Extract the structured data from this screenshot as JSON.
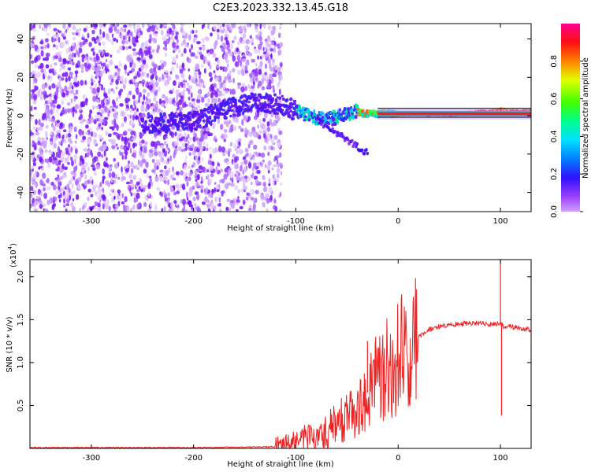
{
  "title": "C2E3.2023.332.13.45.G18",
  "chart_data": [
    {
      "type": "heatmap",
      "name": "spectrogram",
      "xlabel": "Height of straight line (km)",
      "ylabel": "Frequency (Hz)",
      "xlim": [
        -360,
        130
      ],
      "ylim": [
        -50,
        48
      ],
      "xticks": [
        -300,
        -200,
        -100,
        0,
        100
      ],
      "yticks": [
        -40,
        -20,
        0,
        20,
        40
      ],
      "tick_labels_x": [
        "-300",
        "-200",
        "-100",
        "0",
        "100"
      ],
      "tick_labels_y": [
        "-40",
        "-20",
        "0",
        "20",
        "40"
      ],
      "colorbar": {
        "label": "Normalized spectral amplitude",
        "range": [
          0,
          1
        ],
        "ticks": [
          0.0,
          0.2,
          0.4,
          0.6,
          0.8
        ],
        "tick_labels": [
          "0.0",
          "0.2",
          "0.4",
          "0.6",
          "0.8"
        ],
        "colors": [
          "#d0a0ff",
          "#8000ff",
          "#2020ff",
          "#00c0ff",
          "#00ff80",
          "#40ff00",
          "#ffff00",
          "#ff8000",
          "#ff0000",
          "#ff0080"
        ]
      },
      "signal_track": {
        "x": [
          -240,
          -200,
          -170,
          -150,
          -130,
          -110,
          -90,
          -70,
          -55,
          -40,
          -30,
          -20,
          0,
          30,
          60,
          90,
          100,
          110,
          130
        ],
        "frequency": [
          -4,
          -3,
          3,
          6,
          7,
          5,
          0,
          -2,
          0,
          2,
          1,
          1,
          1,
          1,
          1,
          2,
          3,
          2,
          2
        ]
      },
      "noise_region_x": [
        -360,
        -120
      ]
    },
    {
      "type": "line",
      "name": "snr",
      "xlabel": "Height of straight line (km)",
      "ylabel": "SNR (10 * v/v)",
      "exponent_label": "(x10",
      "exponent_power": "4",
      "exponent_close": ")",
      "xlim": [
        -360,
        130
      ],
      "ylim": [
        0,
        2.2
      ],
      "xticks": [
        -300,
        -200,
        -100,
        0,
        100
      ],
      "yticks": [
        0.5,
        1.0,
        1.5,
        2.0
      ],
      "tick_labels_x": [
        "-300",
        "-200",
        "-100",
        "0",
        "100"
      ],
      "tick_labels_y": [
        "0.5",
        "1.0",
        "1.5",
        "2.0"
      ],
      "series_color": "#ee2222",
      "series": [
        {
          "name": "SNR",
          "x": [
            -360,
            -300,
            -200,
            -150,
            -120,
            -110,
            -100,
            -90,
            -80,
            -70,
            -60,
            -50,
            -40,
            -30,
            -20,
            -10,
            0,
            10,
            20,
            30,
            40,
            50,
            60,
            70,
            80,
            90,
            95,
            100,
            105,
            110,
            120,
            130
          ],
          "y": [
            0.01,
            0.01,
            0.01,
            0.015,
            0.02,
            0.04,
            0.08,
            0.15,
            0.1,
            0.2,
            0.3,
            0.4,
            0.5,
            0.65,
            0.8,
            0.95,
            1.05,
            1.2,
            1.3,
            1.38,
            1.42,
            1.44,
            1.45,
            1.46,
            1.46,
            1.45,
            1.45,
            1.45,
            1.41,
            1.42,
            1.4,
            1.38
          ]
        }
      ],
      "spikes": [
        {
          "x": 100,
          "y": 2.25
        },
        {
          "x": 101,
          "y": 0.38
        },
        {
          "x": -30,
          "y": 1.25
        },
        {
          "x": -22,
          "y": 1.3
        }
      ]
    }
  ]
}
